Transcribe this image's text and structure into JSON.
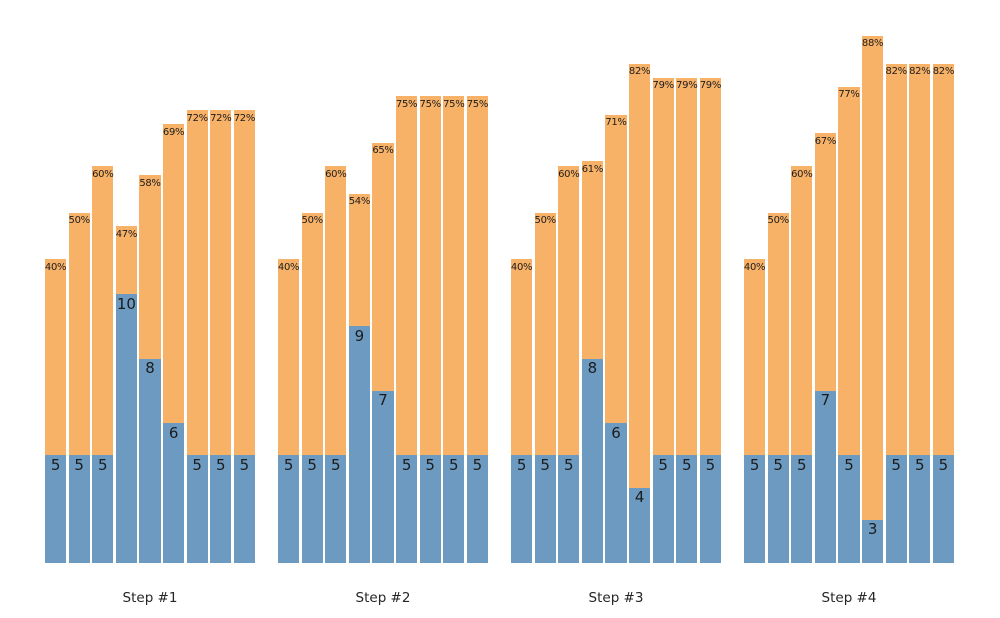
{
  "chart_data": {
    "type": "bar",
    "subtype": "grouped-overlay-stacked",
    "title": "",
    "xlabel": "",
    "ylabel": "",
    "grid": false,
    "axes_visible": false,
    "legend": null,
    "colors": {
      "count_fill": "#6d9ac1",
      "rate_fill": "#f8b268",
      "label_text": "#1c1c1c",
      "step_label_text": "#262626",
      "background": "#ffffff"
    },
    "groups": [
      {
        "label": "Step #1",
        "bars": [
          {
            "count": 5,
            "count_label": "5",
            "rate_pct": 40,
            "rate_label": "40%"
          },
          {
            "count": 5,
            "count_label": "5",
            "rate_pct": 50,
            "rate_label": "50%"
          },
          {
            "count": 5,
            "count_label": "5",
            "rate_pct": 60,
            "rate_label": "60%"
          },
          {
            "count": 10,
            "count_label": "10",
            "rate_pct": 47,
            "rate_label": "47%"
          },
          {
            "count": 8,
            "count_label": "8",
            "rate_pct": 58,
            "rate_label": "58%"
          },
          {
            "count": 6,
            "count_label": "6",
            "rate_pct": 69,
            "rate_label": "69%"
          },
          {
            "count": 5,
            "count_label": "5",
            "rate_pct": 72,
            "rate_label": "72%"
          },
          {
            "count": 5,
            "count_label": "5",
            "rate_pct": 72,
            "rate_label": "72%"
          },
          {
            "count": 5,
            "count_label": "5",
            "rate_pct": 72,
            "rate_label": "72%"
          }
        ]
      },
      {
        "label": "Step #2",
        "bars": [
          {
            "count": 5,
            "count_label": "5",
            "rate_pct": 40,
            "rate_label": "40%"
          },
          {
            "count": 5,
            "count_label": "5",
            "rate_pct": 50,
            "rate_label": "50%"
          },
          {
            "count": 5,
            "count_label": "5",
            "rate_pct": 60,
            "rate_label": "60%"
          },
          {
            "count": 9,
            "count_label": "9",
            "rate_pct": 54,
            "rate_label": "54%"
          },
          {
            "count": 7,
            "count_label": "7",
            "rate_pct": 65,
            "rate_label": "65%"
          },
          {
            "count": 5,
            "count_label": "5",
            "rate_pct": 75,
            "rate_label": "75%"
          },
          {
            "count": 5,
            "count_label": "5",
            "rate_pct": 75,
            "rate_label": "75%"
          },
          {
            "count": 5,
            "count_label": "5",
            "rate_pct": 75,
            "rate_label": "75%"
          },
          {
            "count": 5,
            "count_label": "5",
            "rate_pct": 75,
            "rate_label": "75%"
          }
        ]
      },
      {
        "label": "Step #3",
        "bars": [
          {
            "count": 5,
            "count_label": "5",
            "rate_pct": 40,
            "rate_label": "40%"
          },
          {
            "count": 5,
            "count_label": "5",
            "rate_pct": 50,
            "rate_label": "50%"
          },
          {
            "count": 5,
            "count_label": "5",
            "rate_pct": 60,
            "rate_label": "60%"
          },
          {
            "count": 8,
            "count_label": "8",
            "rate_pct": 61,
            "rate_label": "61%"
          },
          {
            "count": 6,
            "count_label": "6",
            "rate_pct": 71,
            "rate_label": "71%"
          },
          {
            "count": 4,
            "count_label": "4",
            "rate_pct": 82,
            "rate_label": "82%"
          },
          {
            "count": 5,
            "count_label": "5",
            "rate_pct": 79,
            "rate_label": "79%"
          },
          {
            "count": 5,
            "count_label": "5",
            "rate_pct": 79,
            "rate_label": "79%"
          },
          {
            "count": 5,
            "count_label": "5",
            "rate_pct": 79,
            "rate_label": "79%"
          }
        ]
      },
      {
        "label": "Step #4",
        "bars": [
          {
            "count": 5,
            "count_label": "5",
            "rate_pct": 40,
            "rate_label": "40%"
          },
          {
            "count": 5,
            "count_label": "5",
            "rate_pct": 50,
            "rate_label": "50%"
          },
          {
            "count": 5,
            "count_label": "5",
            "rate_pct": 60,
            "rate_label": "60%"
          },
          {
            "count": 7,
            "count_label": "7",
            "rate_pct": 67,
            "rate_label": "67%"
          },
          {
            "count": 5,
            "count_label": "5",
            "rate_pct": 77,
            "rate_label": "77%"
          },
          {
            "count": 3,
            "count_label": "3",
            "rate_pct": 88,
            "rate_label": "88%"
          },
          {
            "count": 5,
            "count_label": "5",
            "rate_pct": 82,
            "rate_label": "82%"
          },
          {
            "count": 5,
            "count_label": "5",
            "rate_pct": 82,
            "rate_label": "82%"
          },
          {
            "count": 5,
            "count_label": "5",
            "rate_pct": 82,
            "rate_label": "82%"
          }
        ]
      }
    ]
  }
}
